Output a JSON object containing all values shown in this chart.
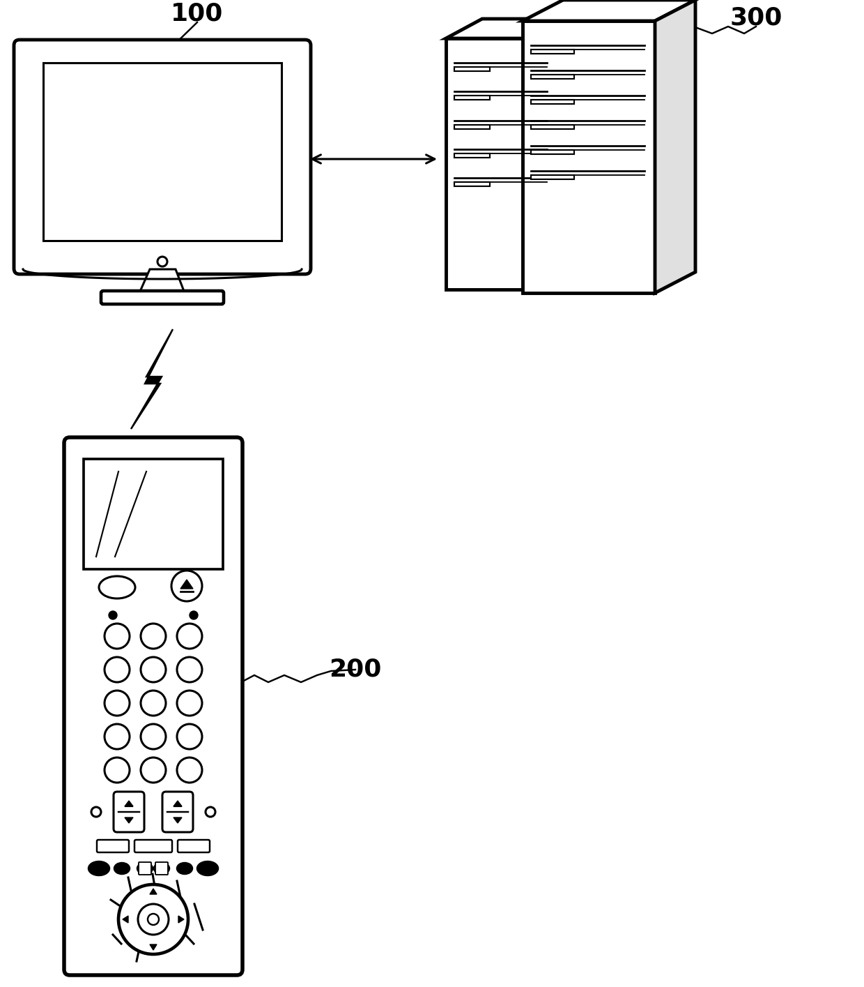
{
  "bg_color": "#ffffff",
  "line_color": "#000000",
  "label_100": "100",
  "label_200": "200",
  "label_300": "300",
  "fig_width": 12.4,
  "fig_height": 14.15,
  "dpi": 100
}
